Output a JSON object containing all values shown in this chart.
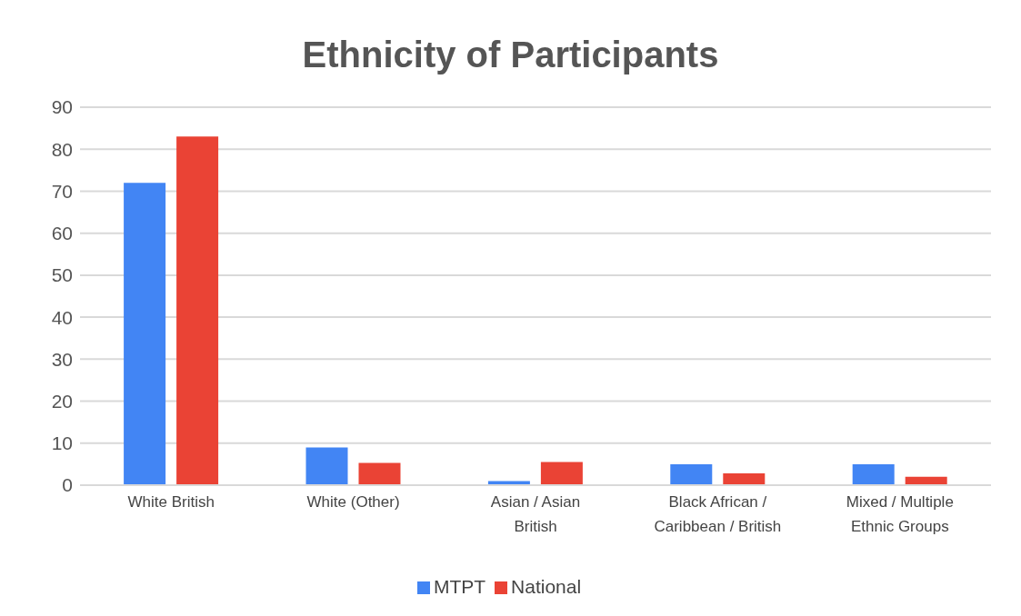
{
  "chart_data": {
    "type": "bar",
    "title": "Ethnicity of Participants",
    "categories": [
      "White British",
      "White (Other)",
      "Asian / Asian British",
      "Black African / Caribbean / British",
      "Mixed / Multiple Ethnic Groups"
    ],
    "series": [
      {
        "name": "MTPT",
        "color": "#4285f4",
        "values": [
          72,
          9,
          1,
          5,
          5
        ]
      },
      {
        "name": "National",
        "color": "#ea4335",
        "values": [
          83,
          5.3,
          5.5,
          2.8,
          2
        ]
      }
    ],
    "ylim": [
      0,
      90
    ],
    "yticks": [
      0,
      10,
      20,
      30,
      40,
      50,
      60,
      70,
      80,
      90
    ],
    "grid": "y",
    "legend": "bottom"
  }
}
